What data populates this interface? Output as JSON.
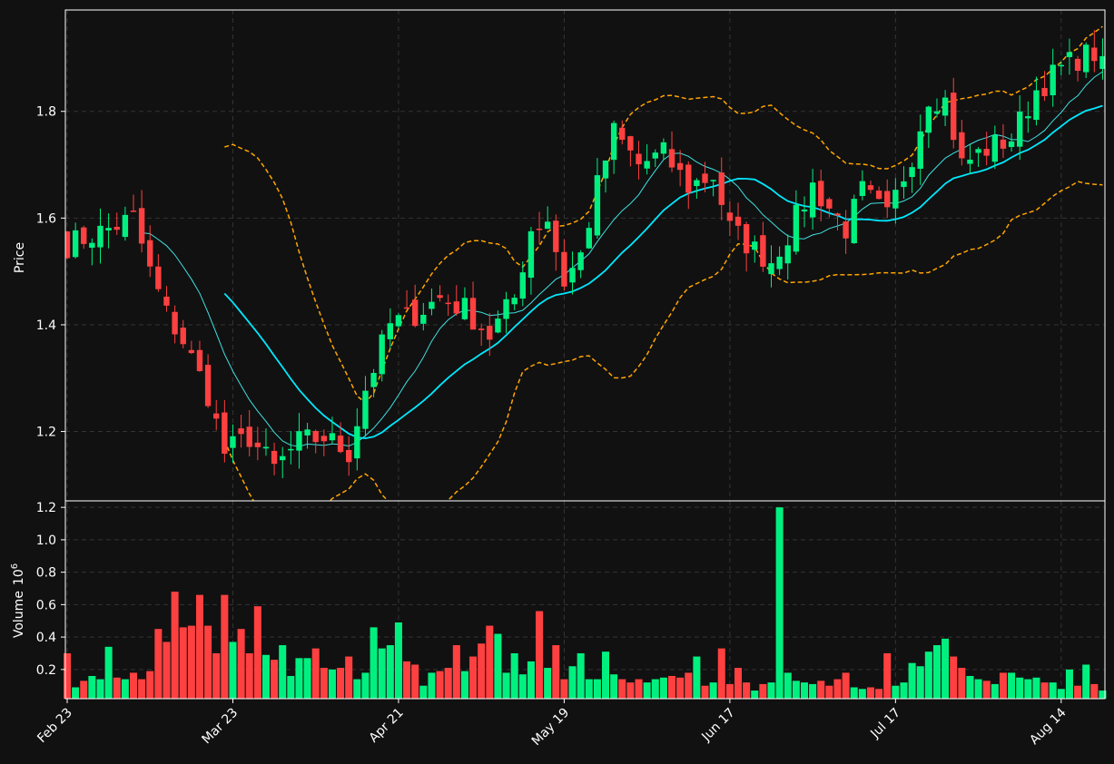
{
  "chart_data": {
    "type": "candlestick",
    "style": "dark",
    "colors": {
      "background": "#111111",
      "up": "#00f080",
      "down": "#ff4040",
      "ma_fast": "#40e0e0",
      "ma_slow": "#00e8ff",
      "bands": "#ffa500",
      "grid": "#333333",
      "frame": "#ffffff"
    },
    "price_panel": {
      "ylabel": "Price",
      "yticks": [
        1.2,
        1.4,
        1.6,
        1.8
      ],
      "ylim": [
        1.07,
        1.99
      ],
      "grid": true
    },
    "volume_panel": {
      "ylabel": "Volume",
      "ylabel_exp": "10",
      "ylabel_pow": "6",
      "yticks": [
        0.2,
        0.4,
        0.6,
        0.8,
        1.0,
        1.2
      ],
      "ylim": [
        0.02,
        1.24
      ],
      "grid": true
    },
    "xticks": [
      {
        "label": "Feb 23",
        "index": 0
      },
      {
        "label": "Mar 23",
        "index": 20
      },
      {
        "label": "Apr 21",
        "index": 40
      },
      {
        "label": "May 19",
        "index": 60
      },
      {
        "label": "Jun 17",
        "index": 80
      },
      {
        "label": "Jul 17",
        "index": 100
      },
      {
        "label": "Aug 14",
        "index": 120
      }
    ],
    "close_anchors": [
      [
        0,
        1.55
      ],
      [
        5,
        1.58
      ],
      [
        8,
        1.6
      ],
      [
        10,
        1.5
      ],
      [
        12,
        1.42
      ],
      [
        14,
        1.37
      ],
      [
        17,
        1.27
      ],
      [
        19,
        1.16
      ],
      [
        22,
        1.19
      ],
      [
        25,
        1.13
      ],
      [
        28,
        1.18
      ],
      [
        31,
        1.19
      ],
      [
        34,
        1.16
      ],
      [
        36,
        1.28
      ],
      [
        39,
        1.4
      ],
      [
        42,
        1.42
      ],
      [
        45,
        1.45
      ],
      [
        48,
        1.43
      ],
      [
        51,
        1.38
      ],
      [
        54,
        1.45
      ],
      [
        56,
        1.58
      ],
      [
        58,
        1.6
      ],
      [
        60,
        1.48
      ],
      [
        62,
        1.53
      ],
      [
        64,
        1.66
      ],
      [
        66,
        1.76
      ],
      [
        69,
        1.7
      ],
      [
        72,
        1.72
      ],
      [
        75,
        1.66
      ],
      [
        78,
        1.68
      ],
      [
        80,
        1.58
      ],
      [
        83,
        1.54
      ],
      [
        85,
        1.52
      ],
      [
        87,
        1.57
      ],
      [
        90,
        1.66
      ],
      [
        92,
        1.62
      ],
      [
        94,
        1.58
      ],
      [
        96,
        1.65
      ],
      [
        99,
        1.6
      ],
      [
        102,
        1.72
      ],
      [
        104,
        1.83
      ],
      [
        106,
        1.82
      ],
      [
        108,
        1.7
      ],
      [
        111,
        1.73
      ],
      [
        114,
        1.75
      ],
      [
        117,
        1.84
      ],
      [
        120,
        1.88
      ],
      [
        122,
        1.9
      ],
      [
        124,
        1.91
      ],
      [
        125,
        1.88
      ]
    ],
    "volume": [
      0.3,
      0.09,
      0.13,
      0.16,
      0.14,
      0.34,
      0.15,
      0.14,
      0.18,
      0.14,
      0.19,
      0.45,
      0.37,
      0.68,
      0.46,
      0.47,
      0.66,
      0.47,
      0.3,
      0.66,
      0.37,
      0.45,
      0.3,
      0.59,
      0.29,
      0.26,
      0.35,
      0.16,
      0.27,
      0.27,
      0.33,
      0.21,
      0.2,
      0.21,
      0.28,
      0.14,
      0.18,
      0.46,
      0.33,
      0.35,
      0.49,
      0.25,
      0.23,
      0.1,
      0.18,
      0.19,
      0.21,
      0.35,
      0.19,
      0.28,
      0.36,
      0.47,
      0.42,
      0.18,
      0.3,
      0.17,
      0.25,
      0.56,
      0.21,
      0.35,
      0.14,
      0.22,
      0.3,
      0.14,
      0.14,
      0.31,
      0.17,
      0.14,
      0.12,
      0.14,
      0.12,
      0.14,
      0.15,
      0.16,
      0.15,
      0.18,
      0.28,
      0.1,
      0.12,
      0.33,
      0.11,
      0.21,
      0.12,
      0.07,
      0.11,
      0.12,
      1.2,
      0.18,
      0.13,
      0.12,
      0.11,
      0.13,
      0.1,
      0.14,
      0.18,
      0.09,
      0.08,
      0.09,
      0.08,
      0.3,
      0.1,
      0.12,
      0.24,
      0.22,
      0.31,
      0.35,
      0.39,
      0.28,
      0.21,
      0.16,
      0.14,
      0.13,
      0.11,
      0.18,
      0.18,
      0.15,
      0.14,
      0.15,
      0.12,
      0.12,
      0.08,
      0.2,
      0.1,
      0.23,
      0.11,
      0.07
    ],
    "moving_averages": [
      10,
      20
    ],
    "bollinger_window": 20
  }
}
